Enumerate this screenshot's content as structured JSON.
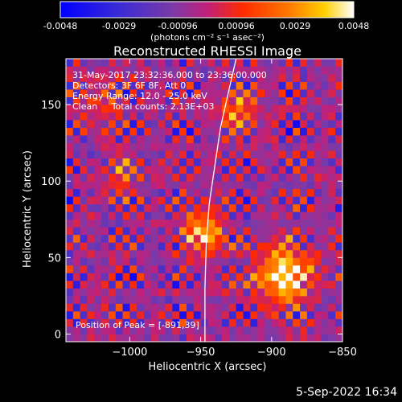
{
  "colors": {
    "background": "#000000",
    "text": "#ffffff",
    "limb_line": "#ffffff",
    "colorbar_stops": [
      "#0000ff",
      "#3a2bd6",
      "#7a3aa8",
      "#c0207a",
      "#ff2a00",
      "#ff7a00",
      "#ffd000",
      "#ffffff"
    ]
  },
  "colorbar": {
    "min": -0.0048,
    "max": 0.0048,
    "tick_labels": [
      "-0.0048",
      "-0.0029",
      "-0.00096",
      "0.00096",
      "0.0029",
      "0.0048"
    ],
    "unit_label": "(photons cm⁻² s⁻¹ asec⁻²)"
  },
  "annotations": {
    "line1": "31-May-2017 23:32:36.000 to 23:36:00.000",
    "line2": "Detectors: 3F 6F 8F, Att 0",
    "line3": "Energy Range: 12.0 - 25.0 keV",
    "line4": "Clean     Total counts: 2.13E+03",
    "peak": "Position of Peak = [-891,39]"
  },
  "footer": {
    "timestamp": "5-Sep-2022 16:34"
  },
  "chart_data": {
    "type": "heatmap",
    "title": "Reconstructed RHESSI Image",
    "xlabel": "Heliocentric X (arcsec)",
    "ylabel": "Heliocentric Y (arcsec)",
    "xlim": [
      -1045,
      -850
    ],
    "ylim": [
      -5,
      180
    ],
    "x_ticks": [
      -1000,
      -950,
      -900,
      -850
    ],
    "x_tick_labels": [
      "−1000",
      "−950",
      "−900",
      "−850"
    ],
    "y_ticks": [
      0,
      50,
      100,
      150
    ],
    "y_tick_labels": [
      "0",
      "50",
      "100",
      "150"
    ],
    "grid": false,
    "peak_position": [
      -891,
      39
    ],
    "sources": [
      {
        "x": -891,
        "y": 39,
        "amplitude": 1.0,
        "sigma": 13
      },
      {
        "x": -948,
        "y": 66,
        "amplitude": 0.75,
        "sigma": 10
      },
      {
        "x": -925,
        "y": 145,
        "amplitude": 0.55,
        "sigma": 9
      },
      {
        "x": -1020,
        "y": 150,
        "amplitude": 0.35,
        "sigma": 10
      },
      {
        "x": -1005,
        "y": 105,
        "amplitude": 0.3,
        "sigma": 9
      }
    ],
    "limb_curve": [
      [
        -947,
        -5
      ],
      [
        -947,
        30
      ],
      [
        -946,
        60
      ],
      [
        -944,
        85
      ],
      [
        -940,
        110
      ],
      [
        -936,
        135
      ],
      [
        -930,
        160
      ],
      [
        -925,
        180
      ]
    ]
  }
}
